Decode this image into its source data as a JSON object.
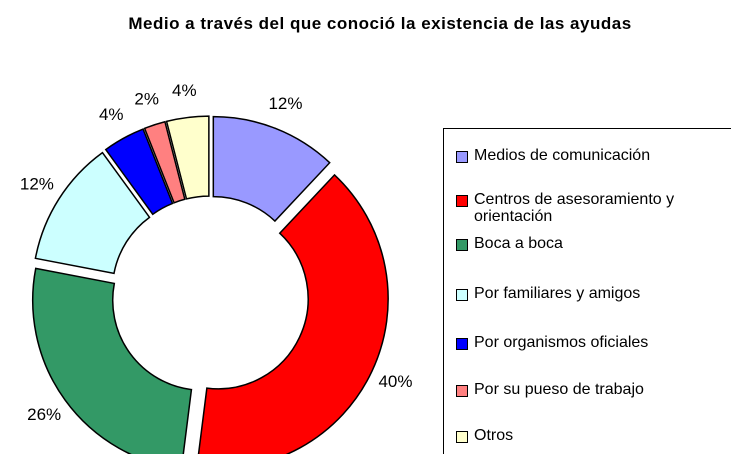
{
  "chart_data": {
    "type": "donut",
    "title": "Medio a través del que conoció la existencia de las ayudas",
    "categories": [
      "Medios de comunicación",
      "Centros de asesoramiento y orientación",
      "Boca a boca",
      "Por familiares y amigos",
      "Por organismos oficiales",
      "Por su pueso de trabajo",
      "Otros"
    ],
    "values": [
      12,
      40,
      26,
      12,
      4,
      2,
      4
    ],
    "value_labels": [
      "12%",
      "40%",
      "26%",
      "12%",
      "4%",
      "2%",
      "4%"
    ],
    "colors": [
      "#9999ff",
      "#ff0000",
      "#339966",
      "#ccffff",
      "#0000ff",
      "#ff8080",
      "#ffffcc"
    ],
    "legend": "right"
  }
}
